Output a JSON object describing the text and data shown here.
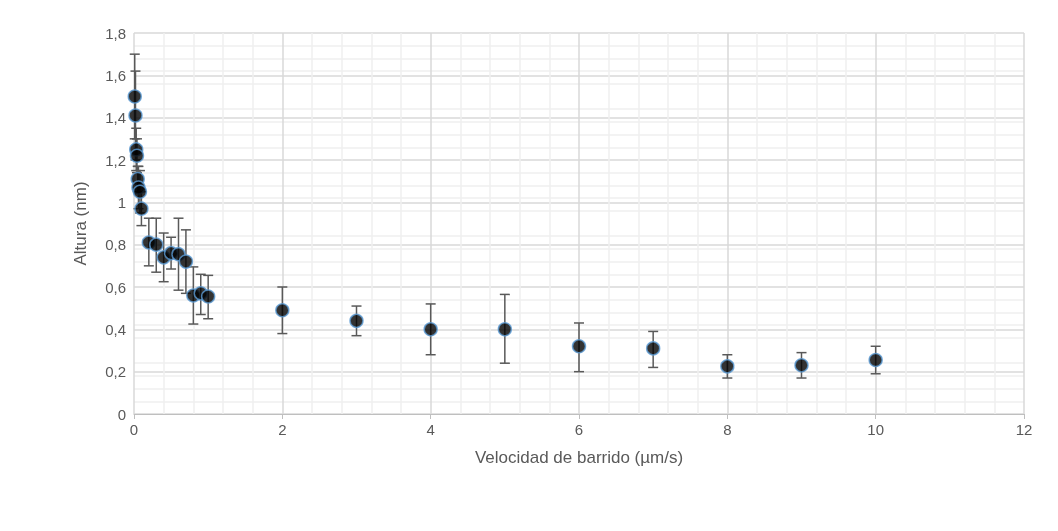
{
  "chart_data": {
    "type": "scatter",
    "xlabel": "Velocidad de barrido (µm/s)",
    "ylabel": "Altura (nm)",
    "x": [
      0.01,
      0.02,
      0.03,
      0.04,
      0.05,
      0.06,
      0.08,
      0.1,
      0.2,
      0.3,
      0.4,
      0.5,
      0.6,
      0.7,
      0.8,
      0.9,
      1,
      2,
      3,
      4,
      5,
      6,
      7,
      8,
      9,
      10
    ],
    "series": [
      {
        "color": "#000000",
        "values": [
          1.5,
          1.41,
          1.25,
          1.22,
          1.11,
          1.07,
          1.05,
          0.97,
          0.81,
          0.8,
          0.74,
          0.76,
          0.755,
          0.72,
          0.56,
          0.57,
          0.555,
          0.49,
          0.44,
          0.4,
          0.4,
          0.32,
          0.31,
          0.225,
          0.23,
          0.255
        ],
        "errors": [
          [
            1.3,
            1.7
          ],
          [
            1.2,
            1.62
          ],
          [
            1.15,
            1.35
          ],
          [
            1.14,
            1.3
          ],
          [
            1.05,
            1.17
          ],
          [
            0.97,
            1.17
          ],
          [
            0.95,
            1.15
          ],
          [
            0.89,
            1.05
          ],
          [
            0.7,
            0.925
          ],
          [
            0.67,
            0.925
          ],
          [
            0.625,
            0.855
          ],
          [
            0.685,
            0.835
          ],
          [
            0.585,
            0.925
          ],
          [
            0.57,
            0.87
          ],
          [
            0.425,
            0.695
          ],
          [
            0.47,
            0.66
          ],
          [
            0.45,
            0.655
          ],
          [
            0.38,
            0.6
          ],
          [
            0.37,
            0.51
          ],
          [
            0.28,
            0.52
          ],
          [
            0.24,
            0.565
          ],
          [
            0.2,
            0.43
          ],
          [
            0.22,
            0.39
          ],
          [
            0.17,
            0.28
          ],
          [
            0.17,
            0.29
          ],
          [
            0.19,
            0.32
          ]
        ]
      }
    ],
    "marker": "circle",
    "grid": true,
    "xlim": [
      0,
      12
    ],
    "xticks": [
      0,
      2,
      4,
      6,
      8,
      10,
      12
    ],
    "ylim": [
      0,
      1.8
    ],
    "yticks": [
      0,
      {
        "value": 0.2,
        "label": "0,2"
      },
      {
        "value": 0.4,
        "label": "0,4"
      },
      {
        "value": 0.6,
        "label": "0,6"
      },
      {
        "value": 0.8,
        "label": "0,8"
      },
      1,
      {
        "value": 1.2,
        "label": "1,2"
      },
      {
        "value": 1.4,
        "label": "1,4"
      },
      {
        "value": 1.6,
        "label": "1,6"
      },
      {
        "value": 1.8,
        "label": "1,8"
      }
    ]
  }
}
